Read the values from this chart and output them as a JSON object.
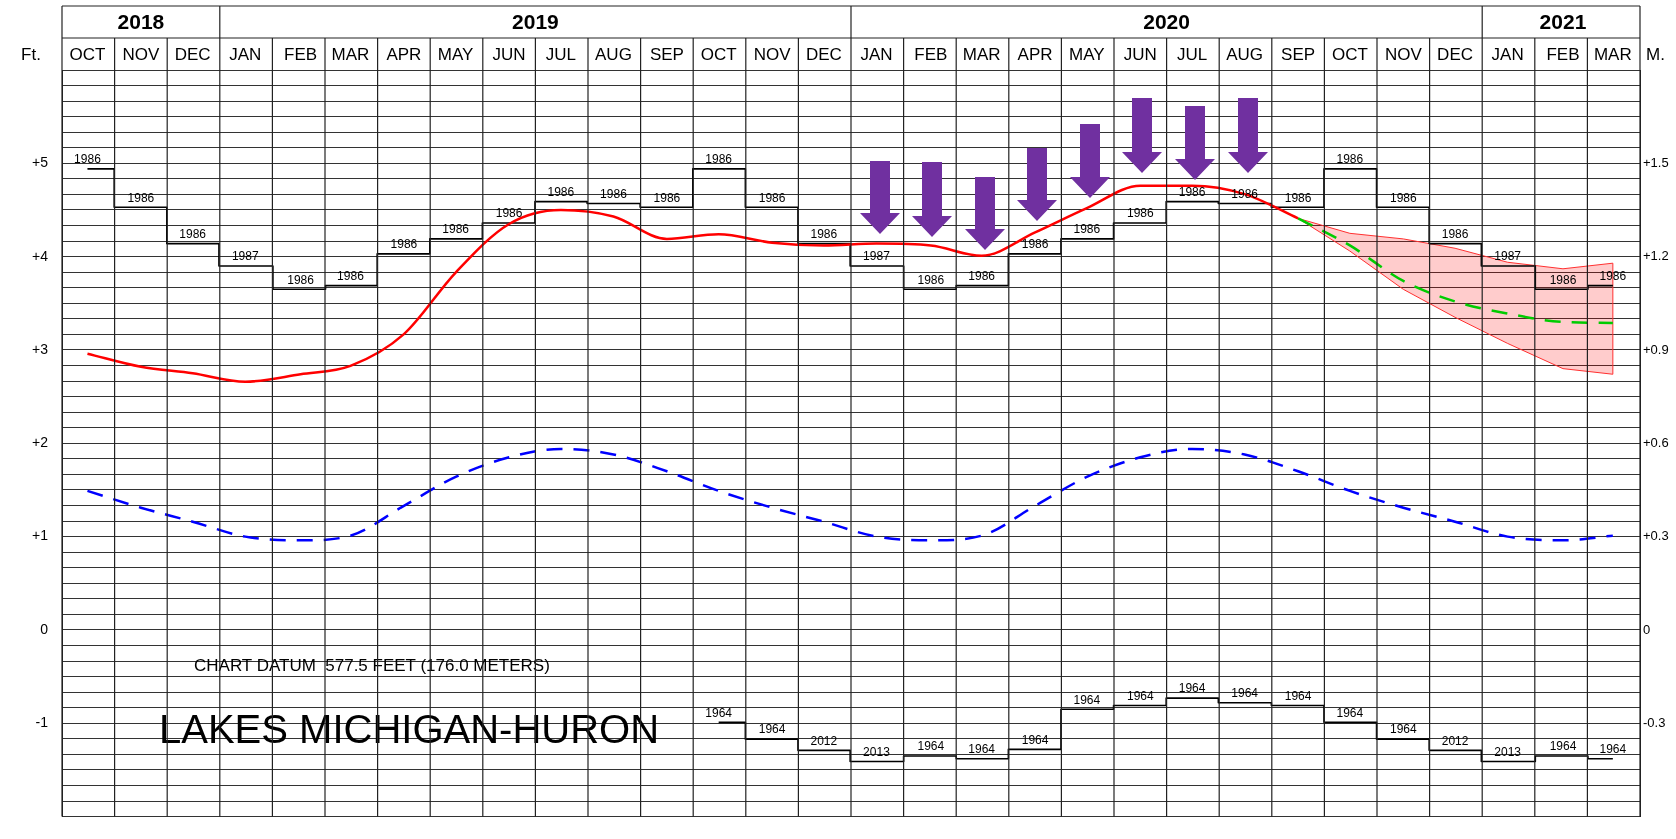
{
  "chart_data": {
    "type": "line",
    "title": "LAKES MICHIGAN-HURON",
    "ylabel": "Ft.",
    "y2label": "M.",
    "annotations": [
      "CHART DATUM  577.5 FEET (176.0 METERS)",
      {
        "text": "1986",
        "x": "2018-10-16",
        "y": 4.94
      },
      {
        "text": "1986",
        "x": "2018-11-16",
        "y": 4.53
      },
      {
        "text": "1986",
        "x": "2018-12-16",
        "y": 4.14
      },
      {
        "text": "1987",
        "x": "2019-01-16",
        "y": 3.9
      },
      {
        "text": "1986",
        "x": "2019-02-16",
        "y": 3.65
      },
      {
        "text": "1986",
        "x": "2019-03-16",
        "y": 3.69
      },
      {
        "text": "1986",
        "x": "2019-04-16",
        "y": 4.03
      },
      {
        "text": "1986",
        "x": "2019-05-16",
        "y": 4.19
      },
      {
        "text": "1986",
        "x": "2019-06-16",
        "y": 4.36
      },
      {
        "text": "1986",
        "x": "2019-07-16",
        "y": 4.59
      },
      {
        "text": "1986",
        "x": "2019-08-16",
        "y": 4.57
      },
      {
        "text": "1986",
        "x": "2019-09-16",
        "y": 4.53
      },
      {
        "text": "1986",
        "x": "2019-10-16",
        "y": 4.94
      },
      {
        "text": "1986",
        "x": "2019-11-16",
        "y": 4.53
      },
      {
        "text": "1986",
        "x": "2019-12-16",
        "y": 4.14
      },
      {
        "text": "1987",
        "x": "2020-01-16",
        "y": 3.9
      },
      {
        "text": "1986",
        "x": "2020-02-16",
        "y": 3.65
      },
      {
        "text": "1986",
        "x": "2020-03-16",
        "y": 3.69
      },
      {
        "text": "1986",
        "x": "2020-04-16",
        "y": 4.03
      },
      {
        "text": "1986",
        "x": "2020-05-16",
        "y": 4.19
      },
      {
        "text": "1986",
        "x": "2020-06-16",
        "y": 4.36
      },
      {
        "text": "1986",
        "x": "2020-07-16",
        "y": 4.59
      },
      {
        "text": "1986",
        "x": "2020-08-16",
        "y": 4.57
      },
      {
        "text": "1986",
        "x": "2020-09-16",
        "y": 4.53
      },
      {
        "text": "1986",
        "x": "2020-10-16",
        "y": 4.94
      },
      {
        "text": "1986",
        "x": "2020-11-16",
        "y": 4.53
      },
      {
        "text": "1986",
        "x": "2020-12-16",
        "y": 4.14
      },
      {
        "text": "1987",
        "x": "2021-01-16",
        "y": 3.9
      },
      {
        "text": "1986",
        "x": "2021-02-16",
        "y": 3.65
      },
      {
        "text": "1986",
        "x": "2021-03-16",
        "y": 3.69
      },
      {
        "text": "1964",
        "x": "2019-10-16",
        "y": -0.99
      },
      {
        "text": "1964",
        "x": "2019-11-16",
        "y": -1.17
      },
      {
        "text": "2012",
        "x": "2019-12-16",
        "y": -1.29
      },
      {
        "text": "2013",
        "x": "2020-01-16",
        "y": -1.41
      },
      {
        "text": "1964",
        "x": "2020-02-16",
        "y": -1.35
      },
      {
        "text": "1964",
        "x": "2020-03-16",
        "y": -1.38
      },
      {
        "text": "1964",
        "x": "2020-04-16",
        "y": -1.28
      },
      {
        "text": "1964",
        "x": "2020-05-16",
        "y": -0.85
      },
      {
        "text": "1964",
        "x": "2020-06-16",
        "y": -0.81
      },
      {
        "text": "1964",
        "x": "2020-07-16",
        "y": -0.73
      },
      {
        "text": "1964",
        "x": "2020-08-16",
        "y": -0.78
      },
      {
        "text": "1964",
        "x": "2020-09-16",
        "y": -0.81
      },
      {
        "text": "1964",
        "x": "2020-10-16",
        "y": -0.99
      },
      {
        "text": "1964",
        "x": "2020-11-16",
        "y": -1.17
      },
      {
        "text": "2012",
        "x": "2020-12-16",
        "y": -1.29
      },
      {
        "text": "2013",
        "x": "2021-01-16",
        "y": -1.41
      },
      {
        "text": "1964",
        "x": "2021-02-16",
        "y": -1.35
      },
      {
        "text": "1964",
        "x": "2021-03-16",
        "y": -1.38
      }
    ],
    "x": [
      "2018-10-16",
      "2018-11-16",
      "2018-12-16",
      "2019-01-16",
      "2019-02-16",
      "2019-03-16",
      "2019-04-16",
      "2019-05-16",
      "2019-06-16",
      "2019-07-16",
      "2019-08-16",
      "2019-09-16",
      "2019-10-16",
      "2019-11-16",
      "2019-12-16",
      "2020-01-16",
      "2020-02-16",
      "2020-03-16",
      "2020-04-16",
      "2020-05-16",
      "2020-06-16",
      "2020-07-16",
      "2020-08-16",
      "2020-09-16",
      "2020-10-16",
      "2020-11-16",
      "2020-12-16",
      "2021-01-16",
      "2021-02-16",
      "2021-03-16"
    ],
    "xlim": [
      "2018-10",
      "2021-04"
    ],
    "xticks": [
      {
        "value": "2018-10",
        "label": null
      },
      {
        "value": "2018-10-16",
        "label": "OCT"
      },
      {
        "value": "2018-11",
        "label": null
      },
      {
        "value": "2018-11-16",
        "label": "NOV"
      },
      {
        "value": "2018-12",
        "label": null
      },
      {
        "value": "2018-12-16",
        "label": "DEC"
      },
      {
        "value": "2019-01",
        "label": null
      },
      {
        "value": "2019-01-16",
        "label": "JAN"
      },
      {
        "value": "2019-02",
        "label": null
      },
      {
        "value": "2019-02-16",
        "label": "FEB"
      },
      {
        "value": "2019-03",
        "label": null
      },
      {
        "value": "2019-03-16",
        "label": "MAR"
      },
      {
        "value": "2019-04",
        "label": null
      },
      {
        "value": "2019-04-16",
        "label": "APR"
      },
      {
        "value": "2019-05",
        "label": null
      },
      {
        "value": "2019-05-16",
        "label": "MAY"
      },
      {
        "value": "2019-06",
        "label": null
      },
      {
        "value": "2019-06-16",
        "label": "JUN"
      },
      {
        "value": "2019-07",
        "label": null
      },
      {
        "value": "2019-07-16",
        "label": "JUL"
      },
      {
        "value": "2019-08",
        "label": null
      },
      {
        "value": "2019-08-16",
        "label": "AUG"
      },
      {
        "value": "2019-09",
        "label": null
      },
      {
        "value": "2019-09-16",
        "label": "SEP"
      },
      {
        "value": "2019-10",
        "label": null
      },
      {
        "value": "2019-10-16",
        "label": "OCT"
      },
      {
        "value": "2019-11",
        "label": null
      },
      {
        "value": "2019-11-16",
        "label": "NOV"
      },
      {
        "value": "2019-12",
        "label": null
      },
      {
        "value": "2019-12-16",
        "label": "DEC"
      },
      {
        "value": "2020-01",
        "label": null
      },
      {
        "value": "2020-01-16",
        "label": "JAN"
      },
      {
        "value": "2020-02",
        "label": null
      },
      {
        "value": "2020-02-16",
        "label": "FEB"
      },
      {
        "value": "2020-03",
        "label": null
      },
      {
        "value": "2020-03-16",
        "label": "MAR"
      },
      {
        "value": "2020-04",
        "label": null
      },
      {
        "value": "2020-04-16",
        "label": "APR"
      },
      {
        "value": "2020-05",
        "label": null
      },
      {
        "value": "2020-05-16",
        "label": "MAY"
      },
      {
        "value": "2020-06",
        "label": null
      },
      {
        "value": "2020-06-16",
        "label": "JUN"
      },
      {
        "value": "2020-07",
        "label": null
      },
      {
        "value": "2020-07-16",
        "label": "JUL"
      },
      {
        "value": "2020-08",
        "label": null
      },
      {
        "value": "2020-08-16",
        "label": "AUG"
      },
      {
        "value": "2020-09",
        "label": null
      },
      {
        "value": "2020-09-16",
        "label": "SEP"
      },
      {
        "value": "2020-10",
        "label": null
      },
      {
        "value": "2020-10-16",
        "label": "OCT"
      },
      {
        "value": "2020-11",
        "label": null
      },
      {
        "value": "2020-11-16",
        "label": "NOV"
      },
      {
        "value": "2020-12",
        "label": null
      },
      {
        "value": "2020-12-16",
        "label": "DEC"
      },
      {
        "value": "2021-01",
        "label": null
      },
      {
        "value": "2021-01-16",
        "label": "JAN"
      },
      {
        "value": "2021-02",
        "label": null
      },
      {
        "value": "2021-02-16",
        "label": "FEB"
      },
      {
        "value": "2021-03",
        "label": null
      },
      {
        "value": "2021-03-16",
        "label": "MAR"
      },
      {
        "value": "2021-04",
        "label": null
      }
    ],
    "x2lim": [
      "2018-10",
      "2021-04"
    ],
    "x2ticks": [
      {
        "value": "2018-10",
        "label": null
      },
      {
        "value": "2018-11-16",
        "label": "2018"
      },
      {
        "value": "2019-01",
        "label": null
      },
      {
        "value": "2019-07",
        "label": "2019"
      },
      {
        "value": "2020-01",
        "label": null
      },
      {
        "value": "2020-07",
        "label": "2020"
      },
      {
        "value": "2021-01",
        "label": null
      },
      {
        "value": "2021-02-16",
        "label": "2021"
      },
      {
        "value": "2021-04",
        "label": null
      }
    ],
    "ylim": [
      -2,
      6
    ],
    "yticks": [
      {
        "value": -2,
        "label": null
      },
      {
        "value": -1.833,
        "label": null
      },
      {
        "value": -1.667,
        "label": null
      },
      {
        "value": -1.5,
        "label": null
      },
      {
        "value": -1.333,
        "label": null
      },
      {
        "value": -1.167,
        "label": null
      },
      -1,
      {
        "value": -0.833,
        "label": null
      },
      {
        "value": -0.667,
        "label": null
      },
      {
        "value": -0.5,
        "label": null
      },
      {
        "value": -0.333,
        "label": null
      },
      {
        "value": -0.167,
        "label": null
      },
      0,
      {
        "value": 0.167,
        "label": null
      },
      {
        "value": 0.333,
        "label": null
      },
      {
        "value": 0.5,
        "label": null
      },
      {
        "value": 0.667,
        "label": null
      },
      {
        "value": 0.833,
        "label": null
      },
      {
        "value": 1,
        "label": "+1"
      },
      {
        "value": 1.167,
        "label": null
      },
      {
        "value": 1.333,
        "label": null
      },
      {
        "value": 1.5,
        "label": null
      },
      {
        "value": 1.667,
        "label": null
      },
      {
        "value": 1.833,
        "label": null
      },
      {
        "value": 2,
        "label": "+2"
      },
      {
        "value": 2.167,
        "label": null
      },
      {
        "value": 2.333,
        "label": null
      },
      {
        "value": 2.5,
        "label": null
      },
      {
        "value": 2.667,
        "label": null
      },
      {
        "value": 2.833,
        "label": null
      },
      {
        "value": 3,
        "label": "+3"
      },
      {
        "value": 3.167,
        "label": null
      },
      {
        "value": 3.333,
        "label": null
      },
      {
        "value": 3.5,
        "label": null
      },
      {
        "value": 3.667,
        "label": null
      },
      {
        "value": 3.833,
        "label": null
      },
      {
        "value": 4,
        "label": "+4"
      },
      {
        "value": 4.167,
        "label": null
      },
      {
        "value": 4.333,
        "label": null
      },
      {
        "value": 4.5,
        "label": null
      },
      {
        "value": 4.667,
        "label": null
      },
      {
        "value": 4.833,
        "label": null
      },
      {
        "value": 5,
        "label": "+5"
      },
      {
        "value": 5.167,
        "label": null
      },
      {
        "value": 5.333,
        "label": null
      },
      {
        "value": 5.5,
        "label": null
      },
      {
        "value": 5.667,
        "label": null
      },
      {
        "value": 5.833,
        "label": null
      },
      {
        "value": 6,
        "label": null
      }
    ],
    "y2lim": [
      -0.6,
      1.8
    ],
    "y2ticks": [
      {
        "value": 1.5,
        "label": "+1.5"
      },
      {
        "value": 1.2,
        "label": "+1.2"
      },
      {
        "value": 0.9,
        "label": "+0.9"
      },
      {
        "value": 0.6,
        "label": "+0.6"
      },
      {
        "value": 0.3,
        "label": "+0.3"
      },
      0,
      -0.3
    ],
    "grid": true,
    "series": [
      {
        "type": "line",
        "color": "#ff0000",
        "values": [
          2.96,
          2.82,
          2.75,
          2.66,
          2.74,
          2.83,
          3.17,
          3.83,
          4.35,
          4.5,
          4.43,
          4.19,
          4.24,
          4.15,
          4.12,
          4.14,
          4.12,
          4.01,
          4.26,
          4.52,
          4.76,
          4.76,
          4.67,
          4.41,
          null,
          null,
          null,
          null,
          null,
          null
        ]
      },
      {
        "type": "line",
        "color": "#0000ff",
        "line_style": "dashed",
        "values": [
          1.49,
          1.31,
          1.16,
          1.0,
          0.96,
          1.01,
          1.33,
          1.64,
          1.85,
          1.94,
          1.88,
          1.7,
          1.49,
          1.31,
          1.16,
          1.0,
          0.96,
          1.01,
          1.33,
          1.64,
          1.85,
          1.94,
          1.88,
          1.7,
          1.49,
          1.31,
          1.16,
          1.0,
          0.96,
          1.01
        ]
      },
      {
        "type": "line",
        "color": "#00cc00",
        "line_style": "dashed",
        "values": [
          null,
          null,
          null,
          null,
          null,
          null,
          null,
          null,
          null,
          null,
          null,
          null,
          null,
          null,
          null,
          null,
          null,
          null,
          null,
          null,
          null,
          null,
          null,
          4.41,
          4.12,
          3.74,
          3.52,
          3.39,
          3.3,
          3.29
        ],
        "lower": [
          null,
          null,
          null,
          null,
          null,
          null,
          null,
          null,
          null,
          null,
          null,
          null,
          null,
          null,
          null,
          null,
          null,
          null,
          null,
          null,
          null,
          null,
          null,
          4.41,
          4.06,
          3.65,
          3.35,
          3.07,
          2.8,
          2.74
        ],
        "upper": [
          null,
          null,
          null,
          null,
          null,
          null,
          null,
          null,
          null,
          null,
          null,
          null,
          null,
          null,
          null,
          null,
          null,
          null,
          null,
          null,
          null,
          null,
          null,
          4.41,
          4.25,
          4.19,
          4.09,
          3.94,
          3.87,
          3.93
        ]
      },
      {
        "type": "step",
        "color": "#000000",
        "values": [
          4.94,
          4.53,
          4.14,
          3.9,
          3.65,
          3.69,
          4.03,
          4.19,
          4.36,
          4.59,
          4.57,
          4.53,
          4.94,
          4.53,
          4.14,
          3.9,
          3.65,
          3.69,
          4.03,
          4.19,
          4.36,
          4.59,
          4.57,
          4.53,
          4.94,
          4.53,
          4.14,
          3.9,
          3.65,
          3.69
        ]
      },
      {
        "type": "step",
        "color": "#000000",
        "values": [
          null,
          null,
          null,
          null,
          null,
          null,
          null,
          null,
          null,
          null,
          null,
          null,
          -0.99,
          -1.17,
          -1.29,
          -1.41,
          -1.35,
          -1.38,
          -1.28,
          -0.85,
          -0.81,
          -0.73,
          -0.78,
          -0.81,
          -0.99,
          -1.17,
          -1.29,
          -1.41,
          -1.35,
          -1.38
        ]
      }
    ]
  }
}
